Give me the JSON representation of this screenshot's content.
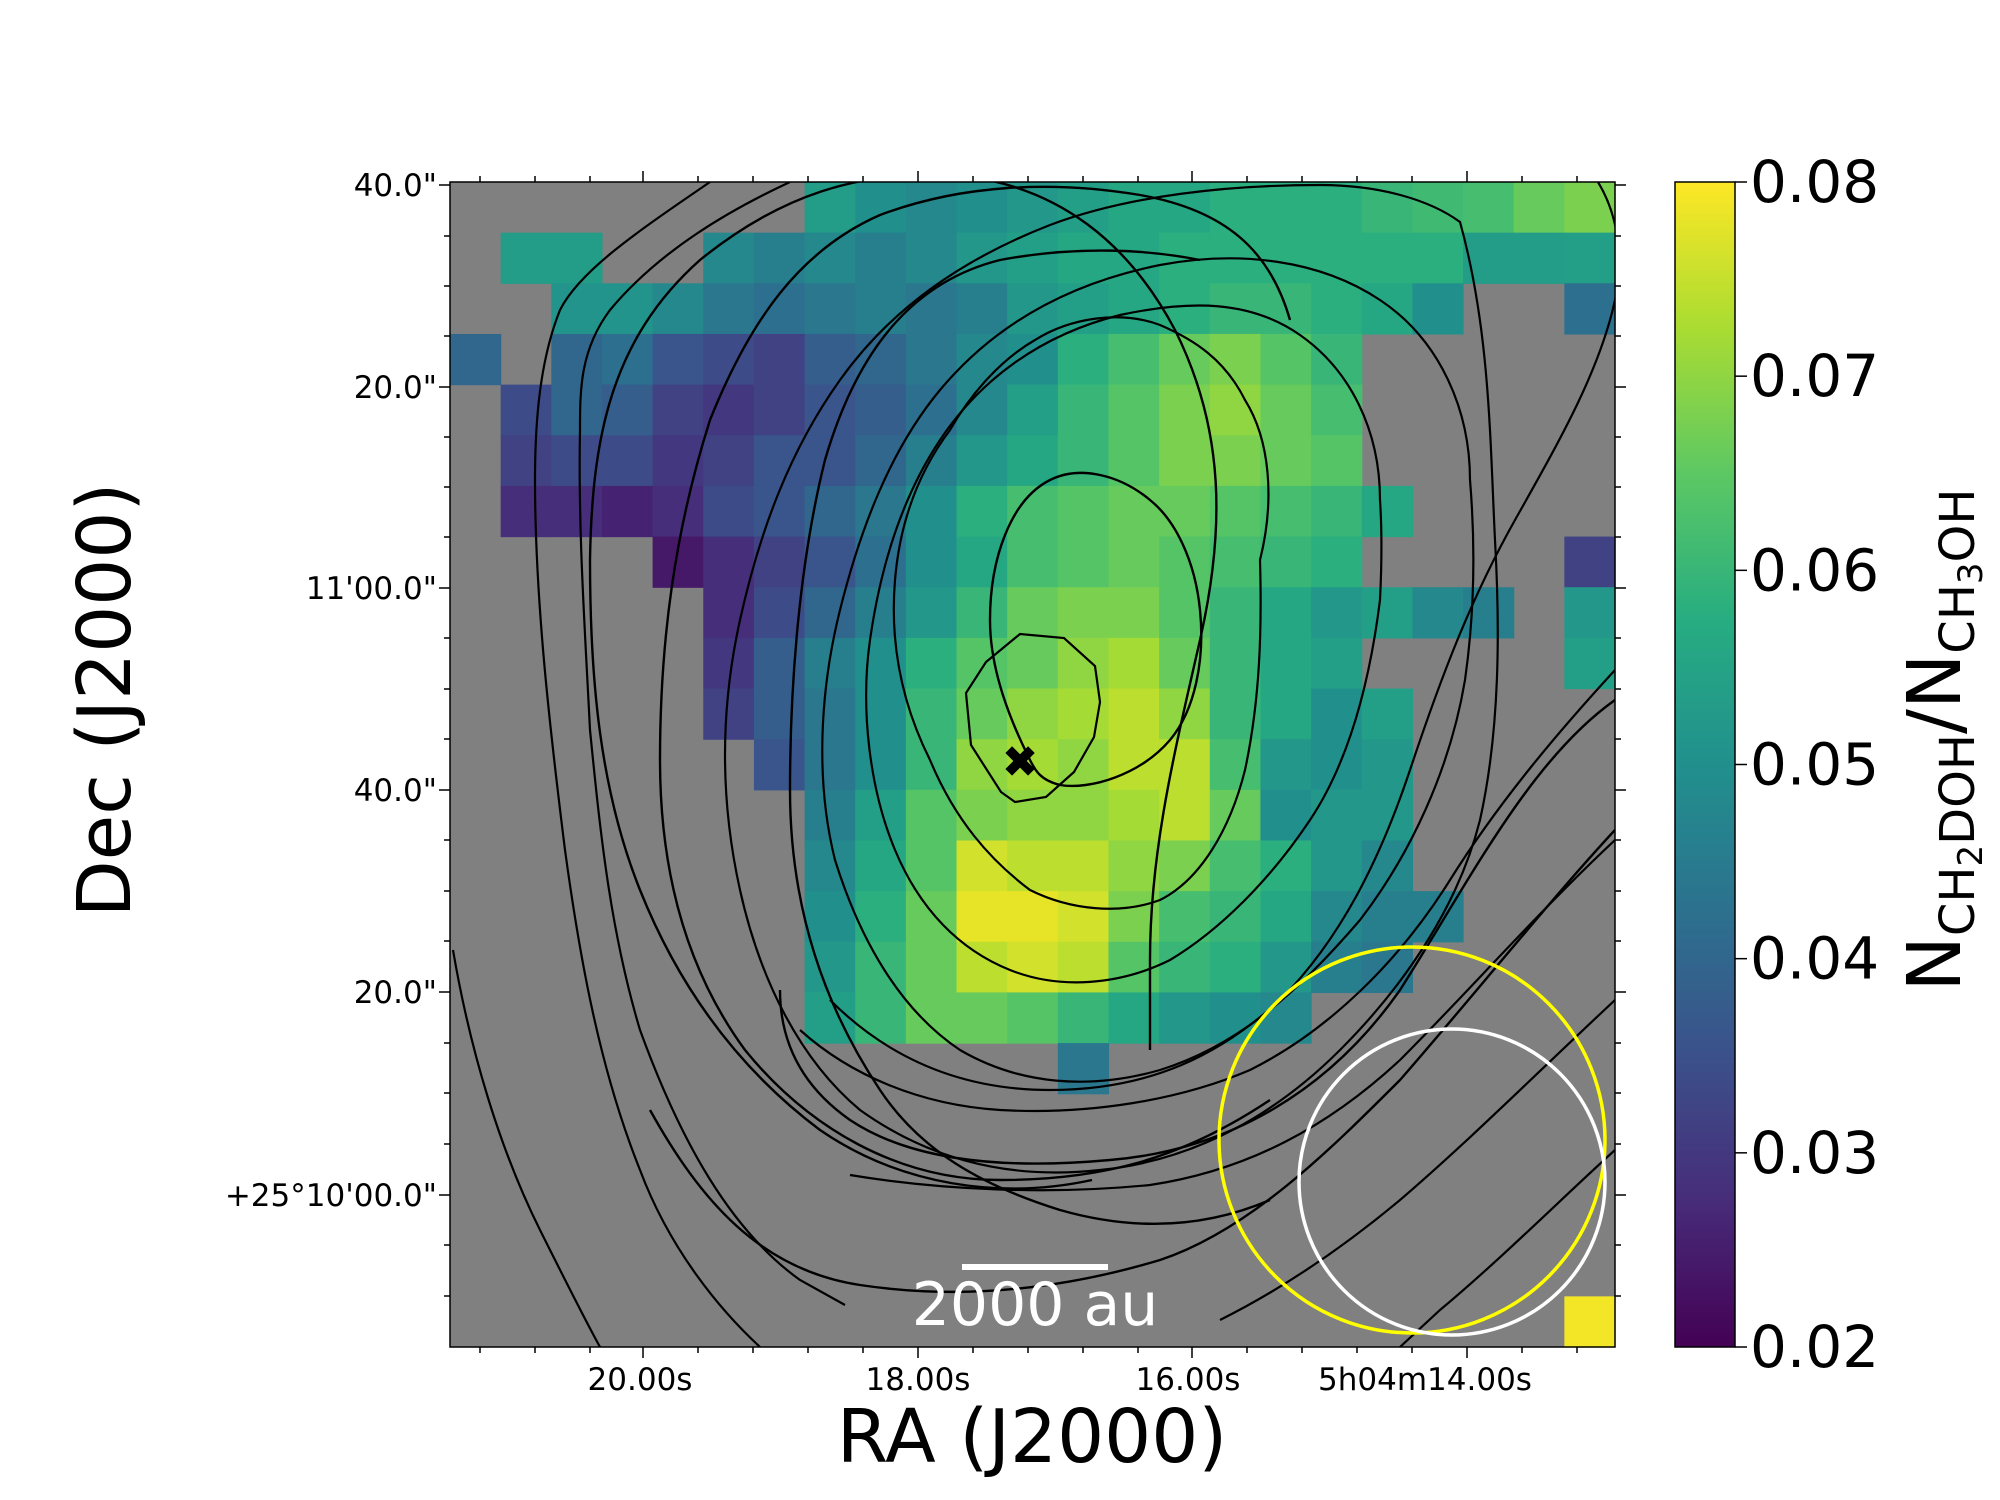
{
  "chart_data": {
    "type": "heatmap",
    "title": "",
    "xlabel": "RA (J2000)",
    "ylabel": "Dec (J2000)",
    "x_ticks": [
      "20.00s",
      "18.00s",
      "16.00s",
      "5h04m14.00s"
    ],
    "y_ticks": [
      "40.0\"",
      "20.0\"",
      "11'00.0\"",
      "40.0\"",
      "20.0\"",
      "+25°10'00.0\""
    ],
    "colorbar": {
      "label_main": "N",
      "num_sub": "CH",
      "num_sub2": "2",
      "num_sub3": "DOH",
      "den_main": "/N",
      "den_sub": "CH",
      "den_sub2": "3",
      "den_sub3": "OH",
      "min": 0.02,
      "max": 0.08,
      "ticks": [
        "0.08",
        "0.07",
        "0.06",
        "0.05",
        "0.04",
        "0.03",
        "0.02"
      ],
      "colormap": "viridis"
    },
    "grid_size": [
      23,
      23
    ],
    "nan_color": "#808080",
    "ratio_map": [
      [
        null,
        null,
        null,
        null,
        null,
        null,
        null,
        0.053,
        0.05,
        0.048,
        0.05,
        0.052,
        0.054,
        0.056,
        0.056,
        0.058,
        0.058,
        0.058,
        0.06,
        0.061,
        0.062,
        0.066,
        0.068
      ],
      [
        null,
        0.053,
        0.053,
        null,
        null,
        0.048,
        0.046,
        0.048,
        0.046,
        0.048,
        0.052,
        0.054,
        0.056,
        0.056,
        0.058,
        0.058,
        0.058,
        0.058,
        0.058,
        0.058,
        0.053,
        0.053,
        0.054
      ],
      [
        null,
        null,
        0.051,
        0.051,
        0.048,
        0.044,
        0.042,
        0.044,
        0.046,
        0.044,
        0.046,
        0.052,
        0.054,
        0.056,
        0.058,
        0.06,
        0.06,
        0.058,
        0.056,
        0.05,
        null,
        null,
        0.042
      ],
      [
        0.04,
        null,
        0.04,
        0.042,
        0.036,
        0.034,
        0.032,
        0.038,
        0.04,
        0.044,
        0.048,
        0.05,
        0.058,
        0.062,
        0.066,
        0.068,
        0.064,
        0.06,
        null,
        null,
        null,
        null,
        null
      ],
      [
        null,
        0.034,
        0.04,
        0.038,
        0.032,
        0.03,
        0.032,
        0.036,
        0.038,
        0.042,
        0.048,
        0.054,
        0.06,
        0.064,
        0.068,
        0.07,
        0.066,
        0.062,
        null,
        null,
        null,
        null,
        null
      ],
      [
        null,
        0.032,
        0.034,
        0.034,
        0.03,
        0.032,
        0.036,
        0.036,
        0.04,
        0.046,
        0.052,
        0.056,
        0.06,
        0.064,
        0.068,
        0.068,
        0.066,
        0.064,
        null,
        null,
        null,
        null,
        null
      ],
      [
        null,
        0.028,
        0.028,
        0.026,
        0.028,
        0.034,
        0.036,
        0.04,
        0.044,
        0.05,
        0.058,
        0.062,
        0.064,
        0.066,
        0.066,
        0.064,
        0.062,
        0.06,
        0.056,
        null,
        null,
        null,
        null
      ],
      [
        null,
        null,
        null,
        null,
        0.024,
        0.028,
        0.032,
        0.036,
        0.042,
        0.05,
        0.056,
        0.062,
        0.064,
        0.066,
        0.064,
        0.062,
        0.06,
        0.058,
        null,
        null,
        null,
        null,
        0.032
      ],
      [
        null,
        null,
        null,
        null,
        null,
        0.028,
        0.034,
        0.04,
        0.046,
        0.052,
        0.06,
        0.066,
        0.068,
        0.068,
        0.064,
        0.06,
        0.056,
        0.052,
        0.054,
        0.048,
        0.046,
        null,
        0.052
      ],
      [
        null,
        null,
        null,
        null,
        null,
        0.03,
        0.038,
        0.046,
        0.05,
        0.058,
        0.064,
        0.066,
        0.07,
        0.072,
        0.066,
        0.06,
        0.056,
        0.054,
        null,
        null,
        null,
        null,
        0.054
      ],
      [
        null,
        null,
        null,
        null,
        null,
        0.032,
        0.038,
        0.044,
        0.05,
        0.06,
        0.066,
        0.07,
        0.072,
        0.074,
        0.07,
        0.06,
        0.056,
        0.05,
        0.054,
        null,
        null,
        null,
        null
      ],
      [
        null,
        null,
        null,
        null,
        null,
        null,
        0.036,
        0.044,
        0.05,
        0.06,
        0.07,
        0.072,
        0.07,
        0.074,
        0.074,
        0.062,
        0.052,
        0.05,
        0.052,
        null,
        null,
        null,
        null
      ],
      [
        null,
        null,
        null,
        null,
        null,
        null,
        null,
        0.046,
        0.054,
        0.064,
        0.068,
        0.07,
        0.07,
        0.072,
        0.074,
        0.066,
        0.05,
        0.052,
        0.052,
        null,
        null,
        null,
        null
      ],
      [
        null,
        null,
        null,
        null,
        null,
        null,
        null,
        0.048,
        0.056,
        0.064,
        0.076,
        0.074,
        0.074,
        0.07,
        0.068,
        0.062,
        0.058,
        0.052,
        0.048,
        null,
        null,
        null,
        null
      ],
      [
        null,
        null,
        null,
        null,
        null,
        null,
        null,
        0.05,
        0.058,
        0.066,
        0.078,
        0.078,
        0.076,
        0.068,
        0.062,
        0.06,
        0.056,
        0.048,
        0.046,
        0.046,
        null,
        null,
        null
      ],
      [
        null,
        null,
        null,
        null,
        null,
        null,
        null,
        0.052,
        0.06,
        0.066,
        0.074,
        0.076,
        0.074,
        0.064,
        0.06,
        0.058,
        0.052,
        0.046,
        0.044,
        null,
        null,
        null,
        null
      ],
      [
        null,
        null,
        null,
        null,
        null,
        null,
        null,
        0.054,
        0.06,
        0.066,
        0.066,
        0.064,
        0.06,
        0.056,
        0.052,
        0.05,
        0.048,
        null,
        null,
        null,
        null,
        null,
        null
      ],
      [
        null,
        null,
        null,
        null,
        null,
        null,
        null,
        null,
        null,
        null,
        null,
        null,
        0.044,
        null,
        null,
        null,
        null,
        null,
        null,
        null,
        null,
        null,
        null
      ],
      [
        null,
        null,
        null,
        null,
        null,
        null,
        null,
        null,
        null,
        null,
        null,
        null,
        null,
        null,
        null,
        null,
        null,
        null,
        null,
        null,
        null,
        null,
        null
      ],
      [
        null,
        null,
        null,
        null,
        null,
        null,
        null,
        null,
        null,
        null,
        null,
        null,
        null,
        null,
        null,
        null,
        null,
        null,
        null,
        null,
        null,
        null,
        null
      ],
      [
        null,
        null,
        null,
        null,
        null,
        null,
        null,
        null,
        null,
        null,
        null,
        null,
        null,
        null,
        null,
        null,
        null,
        null,
        null,
        null,
        null,
        null,
        null
      ],
      [
        null,
        null,
        null,
        null,
        null,
        null,
        null,
        null,
        null,
        null,
        null,
        null,
        null,
        null,
        null,
        null,
        null,
        null,
        null,
        null,
        null,
        null,
        null
      ],
      [
        null,
        null,
        null,
        null,
        null,
        null,
        null,
        null,
        null,
        null,
        null,
        null,
        null,
        null,
        null,
        null,
        null,
        null,
        null,
        null,
        null,
        null,
        0.079
      ]
    ],
    "scalebar_label": "2000 au",
    "contour_color": "#000000",
    "beam_colors": [
      "#ffff00",
      "#ffffff"
    ],
    "marker": "x"
  }
}
